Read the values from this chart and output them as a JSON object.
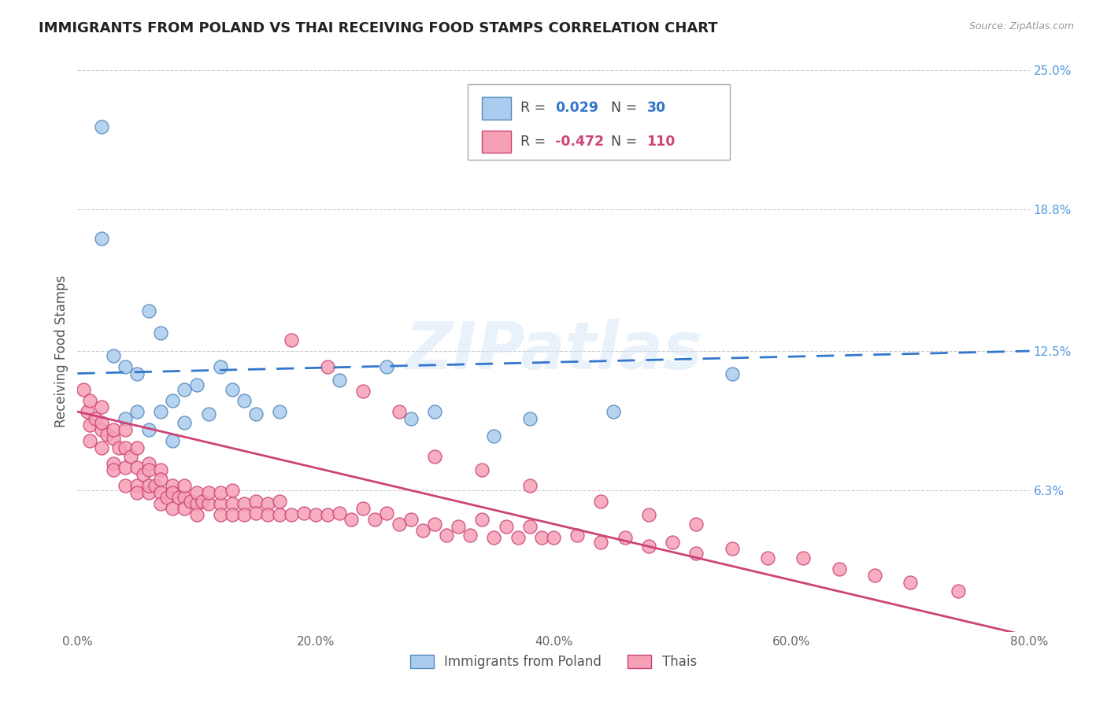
{
  "title": "IMMIGRANTS FROM POLAND VS THAI RECEIVING FOOD STAMPS CORRELATION CHART",
  "source_text": "Source: ZipAtlas.com",
  "ylabel": "Receiving Food Stamps",
  "watermark": "ZIPatlas",
  "xlim": [
    0.0,
    0.8
  ],
  "ylim": [
    0.0,
    0.25
  ],
  "xtick_labels": [
    "0.0%",
    "",
    "20.0%",
    "",
    "40.0%",
    "",
    "60.0%",
    "",
    "80.0%"
  ],
  "xtick_values": [
    0.0,
    0.1,
    0.2,
    0.3,
    0.4,
    0.5,
    0.6,
    0.7,
    0.8
  ],
  "ytick_labels_right": [
    "6.3%",
    "12.5%",
    "18.8%",
    "25.0%"
  ],
  "ytick_values_right": [
    0.063,
    0.125,
    0.188,
    0.25
  ],
  "series1_color": "#aaccee",
  "series1_edge_color": "#5588bb",
  "series1_trend_color": "#3377cc",
  "series2_color": "#f5a0b5",
  "series2_edge_color": "#cc4477",
  "series2_trend_color": "#cc4477",
  "series1_label": "Immigrants from Poland",
  "series2_label": "Thais",
  "series1_R": "0.029",
  "series1_N": "30",
  "series2_R": "-0.472",
  "series2_N": "110",
  "bg_color": "#ffffff",
  "grid_color": "#cccccc",
  "title_color": "#222222",
  "axis_label_color": "#555555",
  "right_tick_color": "#5599dd",
  "text_color_blue": "#3377cc",
  "text_color_pink": "#cc4477",
  "scatter1_x": [
    0.02,
    0.02,
    0.03,
    0.04,
    0.04,
    0.05,
    0.05,
    0.06,
    0.06,
    0.07,
    0.07,
    0.08,
    0.08,
    0.09,
    0.09,
    0.1,
    0.11,
    0.12,
    0.13,
    0.14,
    0.15,
    0.17,
    0.22,
    0.26,
    0.28,
    0.3,
    0.35,
    0.38,
    0.45,
    0.55
  ],
  "scatter1_y": [
    0.225,
    0.175,
    0.123,
    0.118,
    0.095,
    0.115,
    0.098,
    0.143,
    0.09,
    0.098,
    0.133,
    0.103,
    0.085,
    0.108,
    0.093,
    0.11,
    0.097,
    0.118,
    0.108,
    0.103,
    0.097,
    0.098,
    0.112,
    0.118,
    0.095,
    0.098,
    0.087,
    0.095,
    0.098,
    0.115
  ],
  "scatter2_x": [
    0.005,
    0.008,
    0.01,
    0.01,
    0.01,
    0.015,
    0.02,
    0.02,
    0.02,
    0.02,
    0.025,
    0.03,
    0.03,
    0.03,
    0.03,
    0.035,
    0.04,
    0.04,
    0.04,
    0.04,
    0.045,
    0.05,
    0.05,
    0.05,
    0.05,
    0.055,
    0.06,
    0.06,
    0.06,
    0.06,
    0.065,
    0.07,
    0.07,
    0.07,
    0.07,
    0.075,
    0.08,
    0.08,
    0.08,
    0.085,
    0.09,
    0.09,
    0.09,
    0.095,
    0.1,
    0.1,
    0.1,
    0.105,
    0.11,
    0.11,
    0.12,
    0.12,
    0.12,
    0.13,
    0.13,
    0.13,
    0.14,
    0.14,
    0.15,
    0.15,
    0.16,
    0.16,
    0.17,
    0.17,
    0.18,
    0.19,
    0.2,
    0.21,
    0.22,
    0.23,
    0.24,
    0.25,
    0.26,
    0.27,
    0.28,
    0.29,
    0.3,
    0.31,
    0.32,
    0.33,
    0.34,
    0.35,
    0.36,
    0.37,
    0.38,
    0.39,
    0.4,
    0.42,
    0.44,
    0.46,
    0.48,
    0.5,
    0.52,
    0.55,
    0.58,
    0.61,
    0.64,
    0.67,
    0.7,
    0.74,
    0.3,
    0.34,
    0.38,
    0.44,
    0.48,
    0.52,
    0.18,
    0.21,
    0.24,
    0.27
  ],
  "scatter2_y": [
    0.108,
    0.098,
    0.103,
    0.092,
    0.085,
    0.095,
    0.09,
    0.1,
    0.082,
    0.093,
    0.088,
    0.086,
    0.075,
    0.09,
    0.072,
    0.082,
    0.082,
    0.073,
    0.065,
    0.09,
    0.078,
    0.073,
    0.065,
    0.082,
    0.062,
    0.07,
    0.075,
    0.062,
    0.072,
    0.065,
    0.065,
    0.062,
    0.072,
    0.057,
    0.068,
    0.06,
    0.065,
    0.055,
    0.062,
    0.06,
    0.06,
    0.055,
    0.065,
    0.058,
    0.057,
    0.062,
    0.052,
    0.058,
    0.057,
    0.062,
    0.057,
    0.052,
    0.062,
    0.057,
    0.052,
    0.063,
    0.057,
    0.052,
    0.058,
    0.053,
    0.057,
    0.052,
    0.058,
    0.052,
    0.052,
    0.053,
    0.052,
    0.052,
    0.053,
    0.05,
    0.055,
    0.05,
    0.053,
    0.048,
    0.05,
    0.045,
    0.048,
    0.043,
    0.047,
    0.043,
    0.05,
    0.042,
    0.047,
    0.042,
    0.047,
    0.042,
    0.042,
    0.043,
    0.04,
    0.042,
    0.038,
    0.04,
    0.035,
    0.037,
    0.033,
    0.033,
    0.028,
    0.025,
    0.022,
    0.018,
    0.078,
    0.072,
    0.065,
    0.058,
    0.052,
    0.048,
    0.13,
    0.118,
    0.107,
    0.098
  ]
}
